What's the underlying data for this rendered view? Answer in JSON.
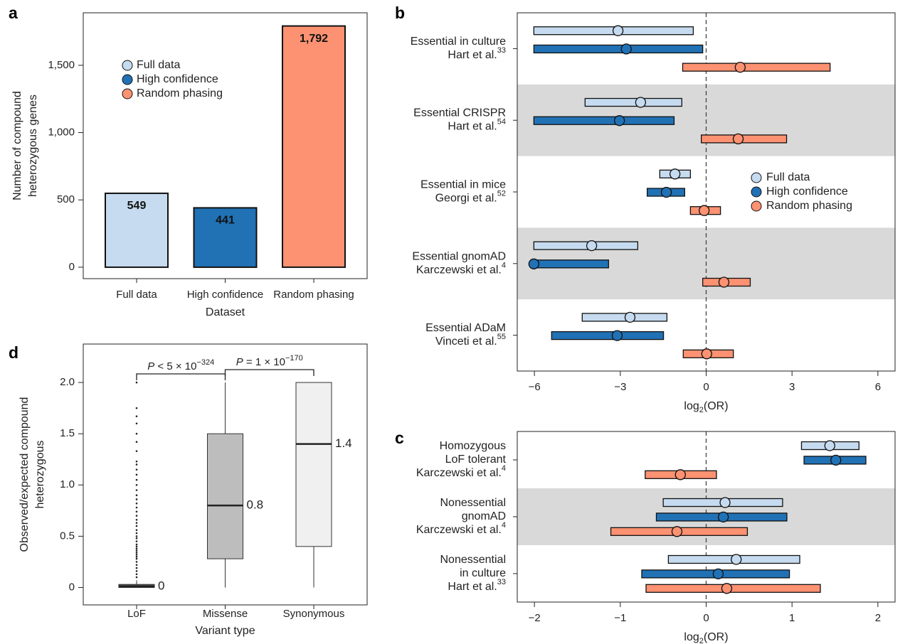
{
  "chart_data": [
    {
      "type": "bar",
      "panel": "a",
      "categories": [
        "Full data",
        "High confidence",
        "Random phasing"
      ],
      "values": [
        549,
        441,
        1792
      ],
      "value_labels": [
        "549",
        "441",
        "1,792"
      ],
      "colors": [
        "#c6dbef",
        "#2171b5",
        "#fc9272"
      ],
      "ylim": [
        -85,
        1890
      ],
      "yticks": [
        0,
        500,
        {
          "value": 1000,
          "label": "1,000"
        },
        {
          "value": 1500,
          "label": "1,500"
        }
      ],
      "xlabel": "Dataset",
      "ylabel": [
        "Number of compound",
        "heterozygous genes"
      ],
      "legend": "upper left"
    },
    {
      "type": "forest",
      "panel": "b",
      "groups": [
        {
          "lines": [
            "Essential in culture",
            "Hart et al."
          ],
          "ref": "33"
        },
        {
          "lines": [
            "Essential CRISPR",
            "Hart  et al."
          ],
          "ref": "54"
        },
        {
          "lines": [
            "Essential in mice",
            "Georgi et al."
          ],
          "ref": "52"
        },
        {
          "lines": [
            "Essential gnomAD",
            "Karczewski et al."
          ],
          "ref": "4"
        },
        {
          "lines": [
            "Essential ADaM",
            "Vinceti et al."
          ],
          "ref": "55"
        }
      ],
      "series": [
        {
          "name": "Full data",
          "color": "#c6dbef",
          "values": [
            -3.08,
            -2.29,
            -1.09,
            -4.0,
            -2.66
          ],
          "lower": [
            -6.02,
            -4.23,
            -1.62,
            -6.02,
            -4.33
          ],
          "upper": [
            -0.45,
            -0.85,
            -0.55,
            -2.39,
            -1.37
          ]
        },
        {
          "name": "High confidence",
          "color": "#2171b5",
          "values": [
            -2.79,
            -3.03,
            -1.39,
            -6.02,
            -3.11
          ],
          "lower": [
            -6.02,
            -6.02,
            -2.06,
            -6.02,
            -5.4
          ],
          "upper": [
            -0.12,
            -1.12,
            -0.75,
            -3.41,
            -1.49
          ]
        },
        {
          "name": "Random phasing",
          "color": "#fc9272",
          "values": [
            1.19,
            1.12,
            -0.07,
            0.62,
            0.02
          ],
          "lower": [
            -0.82,
            -0.17,
            -0.55,
            -0.12,
            -0.8
          ],
          "upper": [
            4.33,
            2.81,
            0.5,
            1.54,
            0.95
          ]
        }
      ],
      "xlim": [
        -6.6,
        6.6
      ],
      "xticks": [
        {
          "value": -6,
          "label": "−6"
        },
        {
          "value": -3,
          "label": "−3"
        },
        0,
        3,
        6
      ],
      "xlabel": {
        "base": "log",
        "subscript": "2",
        "suffix": "(OR)"
      },
      "vline": 0,
      "shade_alternate": true,
      "legend": "right"
    },
    {
      "type": "forest",
      "panel": "c",
      "groups": [
        {
          "lines": [
            "Homozygous",
            "LoF tolerant",
            "Karczewski et al."
          ],
          "ref": "4"
        },
        {
          "lines": [
            "Nonessential",
            "gnomAD",
            "Karczewski et al."
          ],
          "ref": "4"
        },
        {
          "lines": [
            "Nonessential",
            "in culture",
            "Hart et al."
          ],
          "ref": "33"
        }
      ],
      "series": [
        {
          "color": "#c6dbef",
          "values": [
            1.44,
            0.22,
            0.35
          ],
          "lower": [
            1.11,
            -0.5,
            -0.44
          ],
          "upper": [
            1.78,
            0.89,
            1.09
          ]
        },
        {
          "color": "#2171b5",
          "values": [
            1.51,
            0.2,
            0.14
          ],
          "lower": [
            1.14,
            -0.58,
            -0.75
          ],
          "upper": [
            1.86,
            0.94,
            0.97
          ]
        },
        {
          "color": "#fc9272",
          "values": [
            -0.3,
            -0.34,
            0.24
          ],
          "lower": [
            -0.71,
            -1.11,
            -0.7
          ],
          "upper": [
            0.12,
            0.48,
            1.33
          ]
        }
      ],
      "xlim": [
        -2.2,
        2.2
      ],
      "xticks": [
        {
          "value": -2,
          "label": "−2"
        },
        {
          "value": -1,
          "label": "−1"
        },
        0,
        1,
        2
      ],
      "xlabel": {
        "base": "log",
        "subscript": "2",
        "suffix": "(OR)"
      },
      "vline": 0,
      "shade_alternate": true
    },
    {
      "type": "box",
      "panel": "d",
      "categories": [
        "LoF",
        "Missense",
        "Synonymous"
      ],
      "colors": [
        "#4d4d4d",
        "#bdbdbd",
        "#f0f0f0"
      ],
      "min": [
        0,
        0,
        0
      ],
      "q1": [
        0,
        0.28,
        0.4
      ],
      "median": [
        0.01,
        0.8,
        1.4
      ],
      "median_labels": [
        "0",
        "0.8",
        "1.4"
      ],
      "q3": [
        0.03,
        1.5,
        2.0
      ],
      "max": [
        0.07,
        2.0,
        2.0
      ],
      "outliers": [
        [
          0.1,
          0.13,
          0.16,
          0.19,
          0.22,
          0.25,
          0.28,
          0.3,
          0.32,
          0.34,
          0.36,
          0.38,
          0.4,
          0.42,
          0.45,
          0.48,
          0.5,
          0.53,
          0.56,
          0.6,
          0.63,
          0.66,
          0.7,
          0.74,
          0.78,
          0.82,
          0.86,
          0.9,
          0.95,
          1.0,
          1.05,
          1.1,
          1.15,
          1.2,
          1.23,
          1.33,
          1.42,
          1.5,
          1.6,
          1.67,
          1.75,
          2.0
        ],
        [],
        []
      ],
      "ylim": [
        -0.17,
        2.375
      ],
      "yticks": [
        0,
        0.5,
        {
          "value": 1,
          "label": "1.0"
        },
        1.5,
        {
          "value": 2,
          "label": "2.0"
        }
      ],
      "xlabel": "Variant type",
      "ylabel": [
        "Observed/expected compound",
        "heterozygous"
      ],
      "annotations": [
        {
          "italic": "P",
          "text": " < 5 × 10",
          "superscript": "−324"
        },
        {
          "italic": "P",
          "text": " = 1 × 10",
          "superscript": "−170"
        }
      ]
    }
  ]
}
